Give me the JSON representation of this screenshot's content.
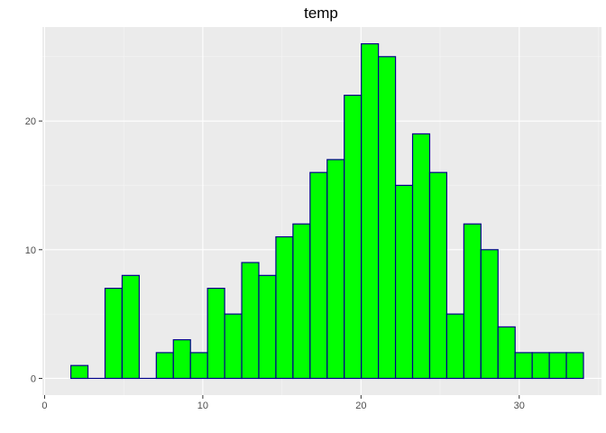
{
  "chart_data": {
    "type": "bar",
    "title": "temp",
    "xlabel": "",
    "ylabel": "",
    "xlim": [
      -0.14,
      35.2
    ],
    "ylim": [
      -1.3,
      27.3
    ],
    "x_ticks": [
      0,
      10,
      20,
      30
    ],
    "y_ticks": [
      0,
      10,
      20
    ],
    "grid": true,
    "legend": "none",
    "bin_width": 1.08,
    "bins": [
      {
        "x0": 1.66,
        "x1": 2.74,
        "count": 1
      },
      {
        "x0": 2.74,
        "x1": 3.82,
        "count": 0
      },
      {
        "x0": 3.82,
        "x1": 4.9,
        "count": 7
      },
      {
        "x0": 4.9,
        "x1": 5.98,
        "count": 8
      },
      {
        "x0": 5.98,
        "x1": 7.06,
        "count": 0
      },
      {
        "x0": 7.06,
        "x1": 8.14,
        "count": 2
      },
      {
        "x0": 8.14,
        "x1": 9.22,
        "count": 3
      },
      {
        "x0": 9.22,
        "x1": 10.3,
        "count": 2
      },
      {
        "x0": 10.3,
        "x1": 11.38,
        "count": 7
      },
      {
        "x0": 11.38,
        "x1": 12.46,
        "count": 5
      },
      {
        "x0": 12.46,
        "x1": 13.54,
        "count": 9
      },
      {
        "x0": 13.54,
        "x1": 14.62,
        "count": 8
      },
      {
        "x0": 14.62,
        "x1": 15.7,
        "count": 11
      },
      {
        "x0": 15.7,
        "x1": 16.78,
        "count": 12
      },
      {
        "x0": 16.78,
        "x1": 17.86,
        "count": 16
      },
      {
        "x0": 17.86,
        "x1": 18.94,
        "count": 17
      },
      {
        "x0": 18.94,
        "x1": 20.02,
        "count": 22
      },
      {
        "x0": 20.02,
        "x1": 21.1,
        "count": 26
      },
      {
        "x0": 21.1,
        "x1": 22.18,
        "count": 25
      },
      {
        "x0": 22.18,
        "x1": 23.26,
        "count": 15
      },
      {
        "x0": 23.26,
        "x1": 24.34,
        "count": 19
      },
      {
        "x0": 24.34,
        "x1": 25.42,
        "count": 16
      },
      {
        "x0": 25.42,
        "x1": 26.5,
        "count": 5
      },
      {
        "x0": 26.5,
        "x1": 27.58,
        "count": 12
      },
      {
        "x0": 27.58,
        "x1": 28.66,
        "count": 10
      },
      {
        "x0": 28.66,
        "x1": 29.74,
        "count": 4
      },
      {
        "x0": 29.74,
        "x1": 30.82,
        "count": 2
      },
      {
        "x0": 30.82,
        "x1": 31.9,
        "count": 2
      },
      {
        "x0": 31.9,
        "x1": 32.98,
        "count": 2
      },
      {
        "x0": 32.98,
        "x1": 34.06,
        "count": 2
      }
    ],
    "colors": {
      "bar_fill": "#00ff00",
      "bar_stroke": "#00008b",
      "panel_background": "#ebebeb",
      "grid_major": "#ffffff",
      "grid_minor": "#f5f5f5",
      "tick": "#333333"
    }
  }
}
